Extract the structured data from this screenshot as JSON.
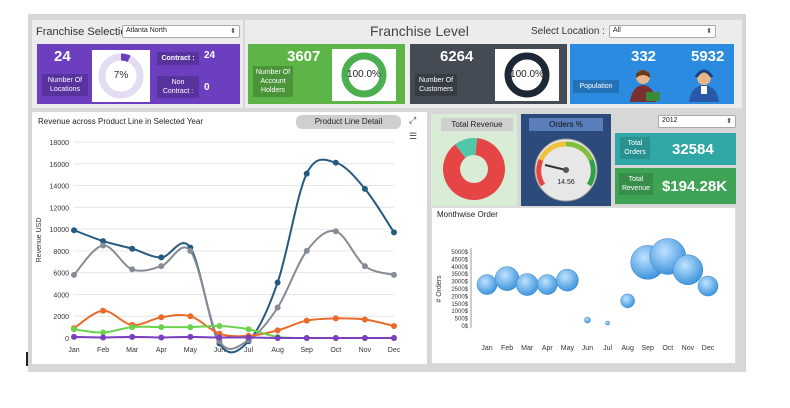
{
  "franchise_selection": {
    "title": "Franchise Selection",
    "selected": "Atlanta North"
  },
  "locations_tile": {
    "count": "24",
    "label": "Number Of Locations",
    "percent": "7%",
    "contract_label": "Contract :",
    "contract_value": "24",
    "non_contract_label": "Non Contract :",
    "non_contract_value": "0"
  },
  "franchise_level": {
    "title": "Franchise Level",
    "select_label": "Select Location :",
    "selected": "All"
  },
  "account_tile": {
    "count": "3607",
    "label": "Number Of Account Holders",
    "percent": "100.0%"
  },
  "customers_tile": {
    "count": "6264",
    "label": "Number Of Customers",
    "percent": "100.0%"
  },
  "population_tile": {
    "label": "Population",
    "value1": "332",
    "value2": "5932"
  },
  "revenue_panel": {
    "title": "Revenue across Product Line in Selected Year",
    "button": "Product Line Detail"
  },
  "total_revenue_panel": {
    "title": "Total Revenue"
  },
  "orders_panel": {
    "title": "Orders %",
    "value": "14.56"
  },
  "year_select": {
    "selected": "2012"
  },
  "total_orders": {
    "label": "Total Orders",
    "value": "32584"
  },
  "total_revenue": {
    "label": "Total Revenue",
    "value": "$194.28K"
  },
  "monthwise_panel": {
    "title": "Monthwise Order"
  },
  "colors": {
    "purple": "#6b3fc0",
    "green": "#5cb546",
    "slate": "#444b55",
    "blue": "#2b8be0",
    "navy_line": "#265a7e",
    "gray_line": "#868c95",
    "orange_line": "#ea6a2a",
    "lime_line": "#6bd24e",
    "purple_line": "#7b3fbf",
    "red_slice": "#e64545",
    "teal": "#2fa7a5"
  },
  "chart_data": [
    {
      "type": "line",
      "title": "Revenue across Product Line in Selected Year",
      "ylabel": "Revenue USD",
      "xlabel": "",
      "categories": [
        "Jan",
        "Feb",
        "Mar",
        "Apr",
        "May",
        "Jun",
        "Jul",
        "Aug",
        "Sep",
        "Oct",
        "Nov",
        "Dec"
      ],
      "ylim": [
        0,
        18000
      ],
      "yticks": [
        "0",
        "2000",
        "4000",
        "6000",
        "8000",
        "10000",
        "12000",
        "14000",
        "16000",
        "18000"
      ],
      "grid": true,
      "series": [
        {
          "color": "#265a7e",
          "values": [
            9900,
            8900,
            8200,
            7400,
            8300,
            -500,
            -300,
            5100,
            15100,
            16100,
            13700,
            9700
          ]
        },
        {
          "color": "#868c95",
          "values": [
            5800,
            8500,
            6300,
            6600,
            8000,
            -300,
            -200,
            2800,
            8000,
            9800,
            6600,
            5800
          ]
        },
        {
          "color": "#ea6a2a",
          "values": [
            900,
            2500,
            1200,
            1900,
            2000,
            400,
            200,
            700,
            1600,
            1800,
            1700,
            1100
          ]
        },
        {
          "color": "#6bd24e",
          "values": [
            800,
            500,
            1000,
            1000,
            1000,
            1100,
            800,
            100,
            0,
            0,
            0,
            0
          ]
        },
        {
          "color": "#7b3fbf",
          "values": [
            100,
            50,
            100,
            50,
            100,
            50,
            50,
            0,
            0,
            0,
            0,
            0
          ]
        }
      ]
    },
    {
      "type": "pie",
      "title": "Total Revenue",
      "values": [
        88,
        12
      ],
      "colors": [
        "#e64545",
        "#4fc7a8"
      ]
    },
    {
      "type": "scatter",
      "title": "Monthwise Order",
      "ylabel": "# Orders",
      "categories": [
        "Jan",
        "Feb",
        "Mar",
        "Apr",
        "May",
        "Jun",
        "Jul",
        "Aug",
        "Sep",
        "Oct",
        "Nov",
        "Dec"
      ],
      "yticks": [
        "0$",
        "500$",
        "1000$",
        "1500$",
        "2000$",
        "2500$",
        "3000$",
        "3500$",
        "4000$",
        "4500$",
        "5000$"
      ],
      "ylim": [
        0,
        5000
      ],
      "values": [
        2800,
        3200,
        2800,
        2800,
        3100,
        400,
        200,
        1700,
        4300,
        4700,
        3800,
        2700
      ],
      "sizes": [
        10,
        12,
        11,
        10,
        11,
        3,
        2,
        7,
        17,
        18,
        15,
        10
      ]
    }
  ]
}
